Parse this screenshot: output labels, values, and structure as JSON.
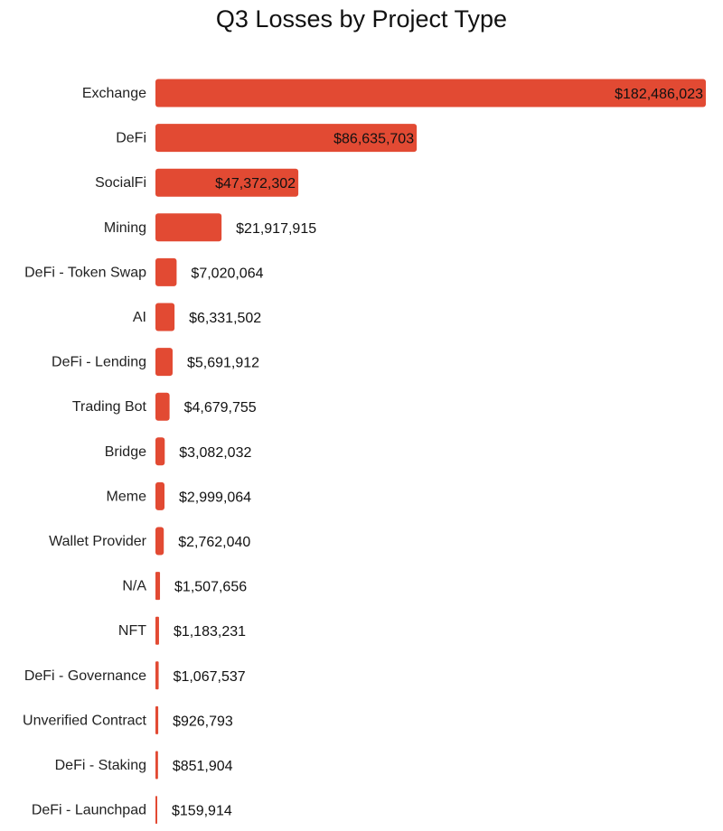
{
  "colors": {
    "bar": "#e24a33"
  },
  "chart_data": {
    "type": "bar",
    "orientation": "horizontal",
    "title": "Q3 Losses by Project Type",
    "xlabel": "",
    "ylabel": "",
    "grid": false,
    "categories": [
      "Exchange",
      "DeFi",
      "SocialFi",
      "Mining",
      "DeFi - Token Swap",
      "AI",
      "DeFi - Lending",
      "Trading Bot",
      "Bridge",
      "Meme",
      "Wallet Provider",
      "N/A",
      "NFT",
      "DeFi - Governance",
      "Unverified Contract",
      "DeFi - Staking",
      "DeFi - Launchpad"
    ],
    "values": [
      182486023,
      86635703,
      47372302,
      21917915,
      7020064,
      6331502,
      5691912,
      4679755,
      3082032,
      2999064,
      2762040,
      1507656,
      1183231,
      1067537,
      926793,
      851904,
      159914
    ],
    "value_labels": [
      "$182,486,023",
      "$86,635,703",
      "$47,372,302",
      "$21,917,915",
      "$7,020,064",
      "$6,331,502",
      "$5,691,912",
      "$4,679,755",
      "$3,082,032",
      "$2,999,064",
      "$2,762,040",
      "$1,507,656",
      "$1,183,231",
      "$1,067,537",
      "$926,793",
      "$851,904",
      "$159,914"
    ],
    "xlim": [
      0,
      182486023
    ],
    "labels_inside_for_top": 3
  }
}
